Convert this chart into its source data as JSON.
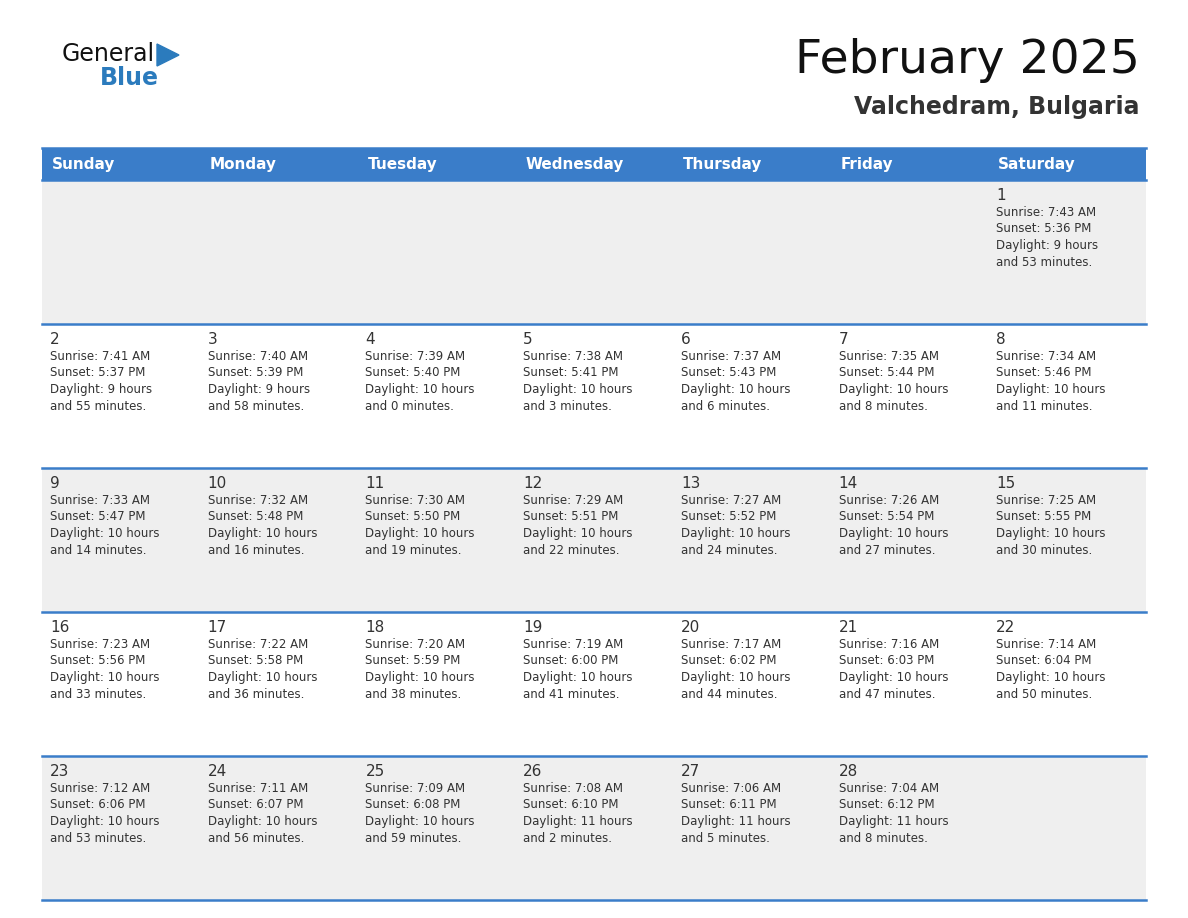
{
  "title": "February 2025",
  "subtitle": "Valchedram, Bulgaria",
  "header_color": "#3A7DC9",
  "header_text_color": "#FFFFFF",
  "bg_color_light": "#EFEFEF",
  "bg_color_white": "#FFFFFF",
  "border_color": "#3A7DC9",
  "text_color": "#333333",
  "day_headers": [
    "Sunday",
    "Monday",
    "Tuesday",
    "Wednesday",
    "Thursday",
    "Friday",
    "Saturday"
  ],
  "weeks": [
    [
      {
        "day": "",
        "info": ""
      },
      {
        "day": "",
        "info": ""
      },
      {
        "day": "",
        "info": ""
      },
      {
        "day": "",
        "info": ""
      },
      {
        "day": "",
        "info": ""
      },
      {
        "day": "",
        "info": ""
      },
      {
        "day": "1",
        "info": "Sunrise: 7:43 AM\nSunset: 5:36 PM\nDaylight: 9 hours\nand 53 minutes."
      }
    ],
    [
      {
        "day": "2",
        "info": "Sunrise: 7:41 AM\nSunset: 5:37 PM\nDaylight: 9 hours\nand 55 minutes."
      },
      {
        "day": "3",
        "info": "Sunrise: 7:40 AM\nSunset: 5:39 PM\nDaylight: 9 hours\nand 58 minutes."
      },
      {
        "day": "4",
        "info": "Sunrise: 7:39 AM\nSunset: 5:40 PM\nDaylight: 10 hours\nand 0 minutes."
      },
      {
        "day": "5",
        "info": "Sunrise: 7:38 AM\nSunset: 5:41 PM\nDaylight: 10 hours\nand 3 minutes."
      },
      {
        "day": "6",
        "info": "Sunrise: 7:37 AM\nSunset: 5:43 PM\nDaylight: 10 hours\nand 6 minutes."
      },
      {
        "day": "7",
        "info": "Sunrise: 7:35 AM\nSunset: 5:44 PM\nDaylight: 10 hours\nand 8 minutes."
      },
      {
        "day": "8",
        "info": "Sunrise: 7:34 AM\nSunset: 5:46 PM\nDaylight: 10 hours\nand 11 minutes."
      }
    ],
    [
      {
        "day": "9",
        "info": "Sunrise: 7:33 AM\nSunset: 5:47 PM\nDaylight: 10 hours\nand 14 minutes."
      },
      {
        "day": "10",
        "info": "Sunrise: 7:32 AM\nSunset: 5:48 PM\nDaylight: 10 hours\nand 16 minutes."
      },
      {
        "day": "11",
        "info": "Sunrise: 7:30 AM\nSunset: 5:50 PM\nDaylight: 10 hours\nand 19 minutes."
      },
      {
        "day": "12",
        "info": "Sunrise: 7:29 AM\nSunset: 5:51 PM\nDaylight: 10 hours\nand 22 minutes."
      },
      {
        "day": "13",
        "info": "Sunrise: 7:27 AM\nSunset: 5:52 PM\nDaylight: 10 hours\nand 24 minutes."
      },
      {
        "day": "14",
        "info": "Sunrise: 7:26 AM\nSunset: 5:54 PM\nDaylight: 10 hours\nand 27 minutes."
      },
      {
        "day": "15",
        "info": "Sunrise: 7:25 AM\nSunset: 5:55 PM\nDaylight: 10 hours\nand 30 minutes."
      }
    ],
    [
      {
        "day": "16",
        "info": "Sunrise: 7:23 AM\nSunset: 5:56 PM\nDaylight: 10 hours\nand 33 minutes."
      },
      {
        "day": "17",
        "info": "Sunrise: 7:22 AM\nSunset: 5:58 PM\nDaylight: 10 hours\nand 36 minutes."
      },
      {
        "day": "18",
        "info": "Sunrise: 7:20 AM\nSunset: 5:59 PM\nDaylight: 10 hours\nand 38 minutes."
      },
      {
        "day": "19",
        "info": "Sunrise: 7:19 AM\nSunset: 6:00 PM\nDaylight: 10 hours\nand 41 minutes."
      },
      {
        "day": "20",
        "info": "Sunrise: 7:17 AM\nSunset: 6:02 PM\nDaylight: 10 hours\nand 44 minutes."
      },
      {
        "day": "21",
        "info": "Sunrise: 7:16 AM\nSunset: 6:03 PM\nDaylight: 10 hours\nand 47 minutes."
      },
      {
        "day": "22",
        "info": "Sunrise: 7:14 AM\nSunset: 6:04 PM\nDaylight: 10 hours\nand 50 minutes."
      }
    ],
    [
      {
        "day": "23",
        "info": "Sunrise: 7:12 AM\nSunset: 6:06 PM\nDaylight: 10 hours\nand 53 minutes."
      },
      {
        "day": "24",
        "info": "Sunrise: 7:11 AM\nSunset: 6:07 PM\nDaylight: 10 hours\nand 56 minutes."
      },
      {
        "day": "25",
        "info": "Sunrise: 7:09 AM\nSunset: 6:08 PM\nDaylight: 10 hours\nand 59 minutes."
      },
      {
        "day": "26",
        "info": "Sunrise: 7:08 AM\nSunset: 6:10 PM\nDaylight: 11 hours\nand 2 minutes."
      },
      {
        "day": "27",
        "info": "Sunrise: 7:06 AM\nSunset: 6:11 PM\nDaylight: 11 hours\nand 5 minutes."
      },
      {
        "day": "28",
        "info": "Sunrise: 7:04 AM\nSunset: 6:12 PM\nDaylight: 11 hours\nand 8 minutes."
      },
      {
        "day": "",
        "info": ""
      }
    ]
  ],
  "logo_color_general": "#111111",
  "logo_color_blue": "#2B7BBD",
  "logo_triangle_color": "#2B7BBD",
  "title_fontsize": 34,
  "subtitle_fontsize": 17,
  "header_fontsize": 11,
  "day_num_fontsize": 11,
  "info_fontsize": 8.5
}
